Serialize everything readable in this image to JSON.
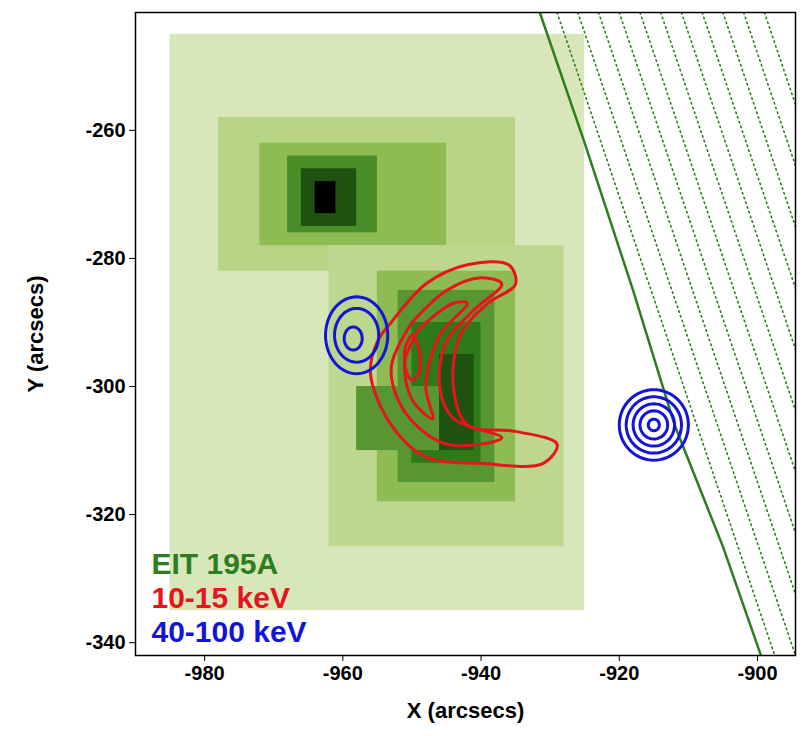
{
  "chart_data": {
    "type": "image_contour",
    "xlabel": "X (arcsecs)",
    "ylabel": "Y (arcsecs)",
    "xlim": [
      -990,
      -894.5
    ],
    "ylim": [
      -342,
      -241.6
    ],
    "xticks": [
      -980,
      -960,
      -940,
      -920,
      -900
    ],
    "yticks": [
      -340,
      -320,
      -300,
      -280,
      -260
    ],
    "legend": "bottom-left",
    "image": {
      "name": "EIT 195A",
      "color_stops": [
        0,
        0.3,
        0.7,
        1
      ],
      "colors": [
        "#eef4dc",
        "#9cc45a",
        "#2f7a18",
        "#000000"
      ],
      "cells": [
        [
          -985,
          -925,
          -335,
          -245,
          0.08
        ],
        [
          -978,
          -935,
          -282,
          -258,
          0.2
        ],
        [
          -972,
          -945,
          -278,
          -262,
          0.35
        ],
        [
          -968,
          -955,
          -276,
          -264,
          0.6
        ],
        [
          -966,
          -958,
          -275,
          -266,
          0.8
        ],
        [
          -964,
          -961,
          -273,
          -268,
          1.0
        ],
        [
          -962,
          -928,
          -325,
          -278,
          0.18
        ],
        [
          -955,
          -935,
          -318,
          -282,
          0.35
        ],
        [
          -952,
          -938,
          -315,
          -285,
          0.55
        ],
        [
          -950,
          -940,
          -312,
          -290,
          0.7
        ],
        [
          -958,
          -945,
          -310,
          -300,
          0.55
        ],
        [
          -946,
          -941,
          -310,
          -295,
          0.8
        ]
      ]
    },
    "limb": {
      "color": "#2e7d1e",
      "line_style": "solid",
      "points": [
        [
          -931.5,
          -241.6
        ],
        [
          -925,
          -262
        ],
        [
          -918,
          -285
        ],
        [
          -912,
          -306
        ],
        [
          -905,
          -325
        ],
        [
          -899.5,
          -342
        ]
      ]
    },
    "limb_dotted": {
      "color": "#2e7d1e",
      "line_style": "dotted",
      "lines": [
        [
          [
            -929,
            -241.6
          ],
          [
            -897.5,
            -342
          ]
        ],
        [
          [
            -926,
            -241.6
          ],
          [
            -894.5,
            -342
          ]
        ],
        [
          [
            -923,
            -241.6
          ],
          [
            -891.5,
            -342
          ]
        ],
        [
          [
            -920,
            -241.6
          ],
          [
            -888.5,
            -342
          ]
        ],
        [
          [
            -917,
            -241.6
          ],
          [
            -885.5,
            -342
          ]
        ],
        [
          [
            -914,
            -241.6
          ],
          [
            -882.5,
            -342
          ]
        ],
        [
          [
            -911,
            -241.6
          ],
          [
            -879.5,
            -342
          ]
        ],
        [
          [
            -908,
            -241.6
          ],
          [
            -876.5,
            -342
          ]
        ],
        [
          [
            -905,
            -241.6
          ],
          [
            -873.5,
            -342
          ]
        ],
        [
          [
            -902,
            -241.6
          ],
          [
            -870.5,
            -342
          ]
        ],
        [
          [
            -899,
            -241.6
          ],
          [
            -867.5,
            -342
          ]
        ]
      ]
    },
    "series": [
      {
        "name": "EIT 195A",
        "color": "#2e7d1e"
      },
      {
        "name": "10-15 keV",
        "color": "#e8141c",
        "type": "contour",
        "contours": [
          [
            [
              -953,
              -290
            ],
            [
              -948,
              -284
            ],
            [
              -942,
              -281
            ],
            [
              -936,
              -281
            ],
            [
              -935,
              -284
            ],
            [
              -939,
              -287
            ],
            [
              -943,
              -292
            ],
            [
              -944,
              -300
            ],
            [
              -942,
              -306
            ],
            [
              -935,
              -307
            ],
            [
              -929,
              -309
            ],
            [
              -931,
              -312
            ],
            [
              -940,
              -312
            ],
            [
              -948,
              -311
            ],
            [
              -953,
              -306
            ],
            [
              -956,
              -298
            ],
            [
              -955,
              -293
            ]
          ],
          [
            [
              -950,
              -290
            ],
            [
              -945,
              -285
            ],
            [
              -940,
              -283
            ],
            [
              -937,
              -284
            ],
            [
              -941,
              -288
            ],
            [
              -945,
              -293
            ],
            [
              -946,
              -300
            ],
            [
              -944,
              -305
            ],
            [
              -937,
              -308
            ],
            [
              -945,
              -309
            ],
            [
              -951,
              -304
            ],
            [
              -953,
              -297
            ]
          ],
          [
            [
              -949,
              -291
            ],
            [
              -944,
              -287
            ],
            [
              -942,
              -287
            ],
            [
              -946,
              -292
            ],
            [
              -948,
              -300
            ],
            [
              -947,
              -305
            ],
            [
              -950,
              -302
            ],
            [
              -951,
              -296
            ]
          ],
          [
            [
              -951,
              -294
            ],
            [
              -950,
              -292
            ],
            [
              -949,
              -294
            ],
            [
              -949,
              -298
            ],
            [
              -950,
              -299
            ],
            [
              -951,
              -297
            ]
          ]
        ]
      },
      {
        "name": "40-100 keV",
        "color": "#1414d8",
        "type": "ellipse_contour",
        "ellipses": [
          {
            "cx": -958,
            "cy": -292,
            "rx": 4.5,
            "ry": 6
          },
          {
            "cx": -958,
            "cy": -292,
            "rx": 3.2,
            "ry": 4.2
          },
          {
            "cx": -958.5,
            "cy": -292.5,
            "rx": 1.3,
            "ry": 1.8
          },
          {
            "cx": -915,
            "cy": -306,
            "rx": 5,
            "ry": 5.5
          },
          {
            "cx": -915,
            "cy": -306,
            "rx": 4,
            "ry": 4.4
          },
          {
            "cx": -915,
            "cy": -306,
            "rx": 3,
            "ry": 3.3
          },
          {
            "cx": -915,
            "cy": -306,
            "rx": 2,
            "ry": 2.2
          },
          {
            "cx": -915,
            "cy": -306,
            "rx": 0.8,
            "ry": 0.9
          }
        ]
      }
    ]
  }
}
